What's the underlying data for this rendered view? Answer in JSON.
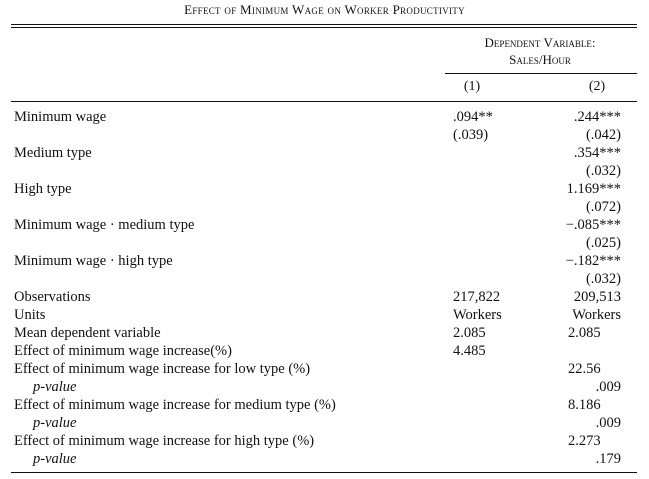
{
  "title": "Effect of Minimum Wage on Worker Productivity",
  "dependent_variable": {
    "line1": "Dependent Variable:",
    "line2": "Sales/Hour"
  },
  "columns": [
    "(1)",
    "(2)"
  ],
  "rows": [
    {
      "label": "Minimum wage",
      "c1": ".094**",
      "c1_se": "(.039)",
      "c2": ".244***",
      "c2_se": "(.042)"
    },
    {
      "label": "Medium type",
      "c2": ".354***",
      "c2_se": "(.032)"
    },
    {
      "label": "High type",
      "c2": "1.169***",
      "c2_se": "(.072)"
    },
    {
      "label": "Minimum wage · medium type",
      "c2": "−.085***",
      "c2_se": "(.025)"
    },
    {
      "label": "Minimum wage · high type",
      "c2": "−.182***",
      "c2_se": "(.032)"
    }
  ],
  "stats": {
    "observations": {
      "label": "Observations",
      "c1": "217,822",
      "c2": "209,513"
    },
    "units": {
      "label": "Units",
      "c1": "Workers",
      "c2": "Workers"
    },
    "mean_dep": {
      "label": "Mean dependent variable",
      "c1": "2.085",
      "c2": "2.085"
    },
    "effect": {
      "label": "Effect of minimum wage increase(%)",
      "c1": "4.485"
    },
    "effect_low": {
      "label": "Effect of minimum wage increase for low type (%)",
      "c2": "22.56"
    },
    "p_low": {
      "label": "p-value",
      "c2": ".009"
    },
    "effect_medium": {
      "label": "Effect of minimum wage increase for medium type (%)",
      "c2": "8.186"
    },
    "p_medium": {
      "label": "p-value",
      "c2": ".009"
    },
    "effect_high": {
      "label": "Effect of minimum wage increase for high type (%)",
      "c2": "2.273"
    },
    "p_high": {
      "label": "p-value",
      "c2": ".179"
    }
  }
}
